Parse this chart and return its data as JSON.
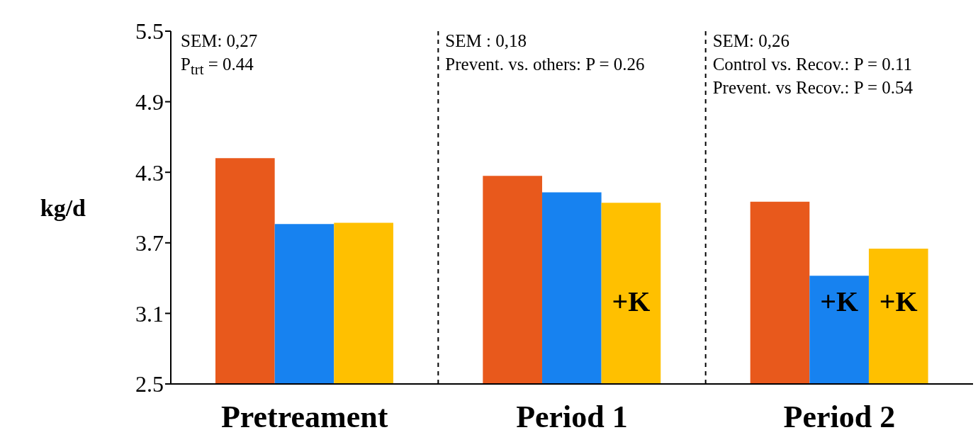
{
  "chart_data": {
    "type": "bar",
    "ylabel": "kg/d",
    "categories": [
      "Pretreament",
      "Period 1",
      "Period 2"
    ],
    "series": [
      {
        "color": "#e8591c",
        "values": [
          4.42,
          4.27,
          4.05
        ]
      },
      {
        "color": "#1782f0",
        "values": [
          3.86,
          4.13,
          3.42
        ],
        "value_labels": [
          null,
          null,
          "+K"
        ]
      },
      {
        "color": "#ffc000",
        "values": [
          3.87,
          4.04,
          3.65
        ],
        "value_labels": [
          null,
          "+K",
          "+K"
        ]
      }
    ],
    "ylim": [
      2.5,
      5.5
    ],
    "yticks": [
      2.5,
      3.1,
      3.7,
      4.3,
      4.9,
      5.5
    ],
    "grid": false,
    "legend": false,
    "annotations": [
      "SEM: 0,27\nP$_{trt}$ = 0.44",
      "SEM : 0,18\nPrevent. vs. others: P = 0.26",
      "SEM: 0,26\nControl vs. Recov.: P = 0.11\nPrevent. vs Recov.: P = 0.54"
    ]
  }
}
